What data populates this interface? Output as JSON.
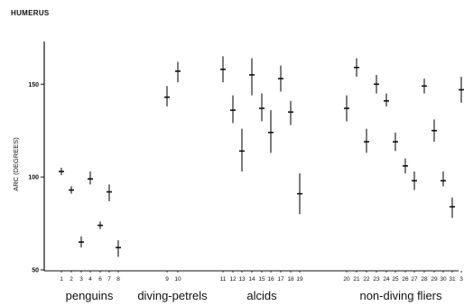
{
  "chart_data": {
    "type": "scatter",
    "title": "HUMERUS",
    "xlabel": "",
    "ylabel": "ARC (DEGREES)",
    "ylim": [
      50,
      172
    ],
    "yticks": [
      50,
      100,
      150
    ],
    "grid": false,
    "groups": [
      {
        "name": "penguins",
        "first": 1,
        "last": 8
      },
      {
        "name": "diving-petrels",
        "first": 9,
        "last": 10
      },
      {
        "name": "alcids",
        "first": 11,
        "last": 19
      },
      {
        "name": "non-diving fliers",
        "first": 20,
        "last": 31
      }
    ],
    "points": [
      {
        "label": "1",
        "mean": 103,
        "low": 101,
        "high": 105
      },
      {
        "label": "2",
        "mean": 93,
        "low": 91,
        "high": 95
      },
      {
        "label": "3",
        "mean": 65,
        "low": 62,
        "high": 68
      },
      {
        "label": "4",
        "mean": 99,
        "low": 96,
        "high": 103
      },
      {
        "label": "6",
        "mean": 74,
        "low": 72,
        "high": 76
      },
      {
        "label": "7",
        "mean": 92,
        "low": 87,
        "high": 96
      },
      {
        "label": "8",
        "mean": 62,
        "low": 57,
        "high": 66
      },
      {
        "label": "9",
        "mean": 143,
        "low": 138,
        "high": 149
      },
      {
        "label": "10",
        "mean": 157,
        "low": 151,
        "high": 162
      },
      {
        "label": "11",
        "mean": 158,
        "low": 151,
        "high": 165
      },
      {
        "label": "12",
        "mean": 136,
        "low": 129,
        "high": 144
      },
      {
        "label": "13",
        "mean": 114,
        "low": 103,
        "high": 126
      },
      {
        "label": "14",
        "mean": 155,
        "low": 144,
        "high": 164
      },
      {
        "label": "15",
        "mean": 137,
        "low": 130,
        "high": 145
      },
      {
        "label": "16",
        "mean": 124,
        "low": 113,
        "high": 136
      },
      {
        "label": "17",
        "mean": 153,
        "low": 146,
        "high": 160
      },
      {
        "label": "18",
        "mean": 135,
        "low": 128,
        "high": 141
      },
      {
        "label": "19",
        "mean": 91,
        "low": 80,
        "high": 102
      },
      {
        "label": "20",
        "mean": 137,
        "low": 130,
        "high": 144
      },
      {
        "label": "21",
        "mean": 159,
        "low": 154,
        "high": 164
      },
      {
        "label": "22",
        "mean": 119,
        "low": 113,
        "high": 126
      },
      {
        "label": "23",
        "mean": 150,
        "low": 145,
        "high": 155
      },
      {
        "label": "24",
        "mean": 141,
        "low": 138,
        "high": 145
      },
      {
        "label": "25",
        "mean": 119,
        "low": 114,
        "high": 124
      },
      {
        "label": "26",
        "mean": 106,
        "low": 102,
        "high": 110
      },
      {
        "label": "27",
        "mean": 98,
        "low": 93,
        "high": 103
      },
      {
        "label": "28",
        "mean": 149,
        "low": 145,
        "high": 153
      },
      {
        "label": "29",
        "mean": 125,
        "low": 119,
        "high": 131
      },
      {
        "label": "30",
        "mean": 98,
        "low": 95,
        "high": 103
      },
      {
        "label": "31",
        "mean": 84,
        "low": 78,
        "high": 89
      },
      {
        "label": "3",
        "mean": 147,
        "low": 140,
        "high": 154
      }
    ]
  }
}
